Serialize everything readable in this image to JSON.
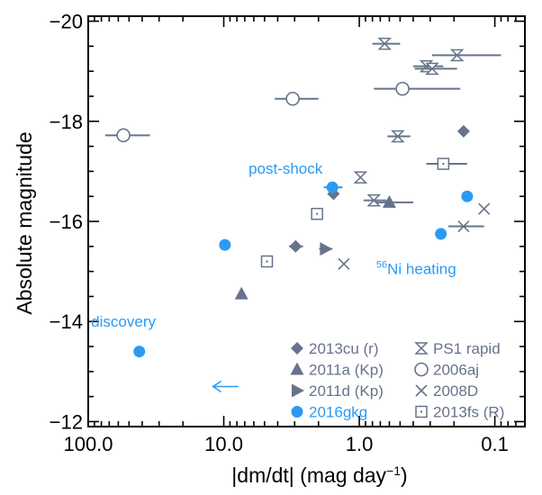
{
  "chart_data": {
    "type": "scatter",
    "title": "",
    "xlabel": "|dm/dt| (mag day",
    "xlabel_sup": "−1",
    "xlabel_tail": ")",
    "ylabel": "Absolute magnitude",
    "xscale": "log",
    "xaxis_reversed": true,
    "yaxis_reversed": true,
    "xlim": [
      100,
      0.06
    ],
    "ylim": [
      -11.9,
      -20.1
    ],
    "x_ticks": [
      100,
      10,
      1,
      0.1
    ],
    "x_tick_labels": [
      "100.0",
      "10.0",
      "1.0",
      "0.1"
    ],
    "y_ticks": [
      -12,
      -14,
      -16,
      -18,
      -20
    ],
    "y_tick_labels": [
      "−12",
      "−14",
      "−16",
      "−18",
      "−20"
    ],
    "grid": false,
    "legend_position": "bottom-right",
    "colors": {
      "gray": "#66738a",
      "blue": "#2b9af3"
    },
    "series": [
      {
        "name": "2013cu (r)",
        "marker": "diamond",
        "color": "#66738a",
        "points": [
          {
            "x": 0.17,
            "y": -17.8
          },
          {
            "x": 1.55,
            "y": -16.55
          },
          {
            "x": 2.95,
            "y": -15.5,
            "xerr": 0.35
          }
        ]
      },
      {
        "name": "2011a (Kp)",
        "marker": "triangle-up",
        "color": "#66738a",
        "points": [
          {
            "x": 0.6,
            "y": -16.38,
            "xerr": 0.2
          },
          {
            "x": 7.4,
            "y": -14.55
          }
        ]
      },
      {
        "name": "2011d (Kp)",
        "marker": "triangle-right",
        "color": "#66738a",
        "points": [
          {
            "x": 1.78,
            "y": -15.45,
            "xerr": 0.2
          }
        ]
      },
      {
        "name": "2016gkg",
        "color": "#2b9af3",
        "marker": "circle-filled",
        "points": [
          {
            "x": 1.58,
            "y": -16.68,
            "xerr": 0.25
          },
          {
            "x": 0.16,
            "y": -16.5
          },
          {
            "x": 0.25,
            "y": -15.75
          },
          {
            "x": 9.8,
            "y": -15.53
          },
          {
            "x": 42,
            "y": -13.4,
            "xerr": 0.2
          }
        ],
        "upper_limit_arrow": {
          "x": 12,
          "y": -12.7
        }
      },
      {
        "name": "PS1 rapid",
        "marker": "hourglass",
        "color": "#66738a",
        "points": [
          {
            "x": 0.65,
            "y": -19.55,
            "xerr": 0.15
          },
          {
            "x": 0.32,
            "y": -19.1,
            "xerr": 0.08
          },
          {
            "x": 0.29,
            "y": -19.05,
            "xerr": 0.1
          },
          {
            "x": 0.19,
            "y": -19.32,
            "xerr": 0.1
          },
          {
            "x": 0.52,
            "y": -17.7,
            "xerr": 0.1
          },
          {
            "x": 0.98,
            "y": -16.88
          },
          {
            "x": 0.78,
            "y": -16.42,
            "xerr": 0.15
          }
        ]
      },
      {
        "name": "2006aj",
        "marker": "circle-open",
        "color": "#66738a",
        "points": [
          {
            "x": 3.1,
            "y": -18.45,
            "xerr": 1.1
          },
          {
            "x": 0.48,
            "y": -18.65,
            "xerr": 0.3
          },
          {
            "x": 55,
            "y": -17.72,
            "xerr": 20
          }
        ]
      },
      {
        "name": "2008D",
        "marker": "x",
        "color": "#66738a",
        "points": [
          {
            "x": 1.3,
            "y": -15.15
          },
          {
            "x": 0.12,
            "y": -16.25
          },
          {
            "x": 0.17,
            "y": -15.9,
            "xerr": 0.05
          }
        ]
      },
      {
        "name": "2013fs (R)",
        "marker": "square-dot",
        "color": "#66738a",
        "points": [
          {
            "x": 0.24,
            "y": -17.15,
            "xerr": 0.08
          },
          {
            "x": 2.05,
            "y": -16.15
          },
          {
            "x": 4.8,
            "y": -15.2
          }
        ]
      }
    ],
    "annotations": [
      {
        "text": "post-shock",
        "color": "#2b9af3",
        "x": 3.5,
        "y": -16.95
      },
      {
        "text_sup": "56",
        "text": "Ni heating",
        "color": "#2b9af3",
        "x": 0.38,
        "y": -14.95
      },
      {
        "text": "discovery",
        "color": "#2b9af3",
        "x": 55,
        "y": -13.9
      }
    ]
  }
}
